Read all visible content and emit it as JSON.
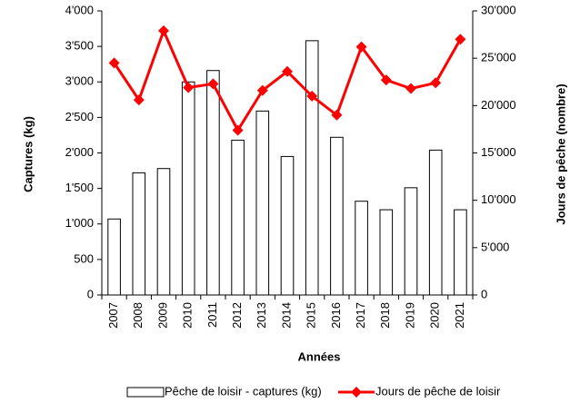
{
  "chart_data": {
    "type": "bar-line",
    "xlabel": "Années",
    "ylabel": "Captures (kg)",
    "y2label": "Jours de pêche (nombre)",
    "categories": [
      "2007",
      "2008",
      "2009",
      "2010",
      "2011",
      "2012",
      "2013",
      "2014",
      "2015",
      "2016",
      "2017",
      "2018",
      "2019",
      "2020",
      "2021"
    ],
    "series": [
      {
        "name": "Pêche de loisir - captures (kg)",
        "type": "bar",
        "color": "#ffffff",
        "values": [
          1070,
          1720,
          1780,
          3000,
          3160,
          2180,
          2590,
          1950,
          3580,
          2220,
          1320,
          1200,
          1510,
          2040,
          1200
        ]
      },
      {
        "name": "Jours de pêche de loisir",
        "type": "line",
        "axis": "y2",
        "color": "#ff0000",
        "values": [
          24500,
          20600,
          27900,
          21900,
          22300,
          17400,
          21600,
          23600,
          21000,
          19000,
          26200,
          22700,
          21800,
          22400,
          27000
        ]
      }
    ],
    "ylim": [
      0,
      4000
    ],
    "yticks": [
      0,
      500,
      {
        "value": 1000,
        "label": "1'000"
      },
      {
        "value": 1500,
        "label": "1'500"
      },
      {
        "value": 2000,
        "label": "2'000"
      },
      {
        "value": 2500,
        "label": "2'500"
      },
      {
        "value": 3000,
        "label": "3'000"
      },
      {
        "value": 3500,
        "label": "3'500"
      },
      {
        "value": 4000,
        "label": "4'000"
      }
    ],
    "y2lim": [
      0,
      30000
    ],
    "y2ticks": [
      0,
      {
        "value": 5000,
        "label": "5'000"
      },
      {
        "value": 10000,
        "label": "10'000"
      },
      {
        "value": 15000,
        "label": "15'000"
      },
      {
        "value": 20000,
        "label": "20'000"
      },
      {
        "value": 25000,
        "label": "25'000"
      },
      {
        "value": 30000,
        "label": "30'000"
      }
    ],
    "legend": "bottom"
  }
}
